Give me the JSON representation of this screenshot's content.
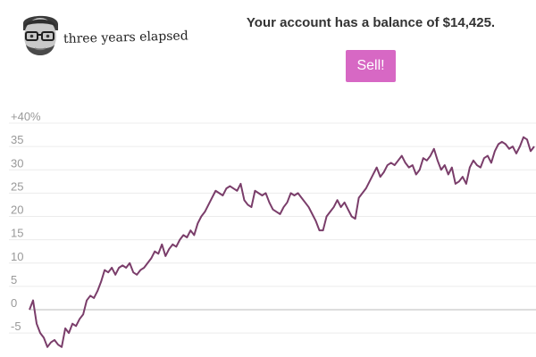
{
  "header": {
    "elapsed_text": "three years elapsed",
    "balance_text": "Your account has a balance of $14,425.",
    "sell_label": "Sell!"
  },
  "colors": {
    "accent": "#d768c4",
    "line": "#7a3d6a",
    "grid": "#ececec",
    "zero_line": "#bbbbbb",
    "tick_text": "#999999"
  },
  "chart_data": {
    "type": "line",
    "title": "",
    "xlabel": "",
    "ylabel": "",
    "ylim": [
      -8,
      40
    ],
    "y_ticks": [
      {
        "value": 40,
        "label": "+40%"
      },
      {
        "value": 35,
        "label": "35"
      },
      {
        "value": 30,
        "label": "30"
      },
      {
        "value": 25,
        "label": "25"
      },
      {
        "value": 20,
        "label": "20"
      },
      {
        "value": 15,
        "label": "15"
      },
      {
        "value": 10,
        "label": "10"
      },
      {
        "value": 5,
        "label": "5"
      },
      {
        "value": 0,
        "label": "0"
      },
      {
        "value": -5,
        "label": "-5"
      }
    ],
    "grid": true,
    "series": [
      {
        "values": [
          0,
          2,
          -3,
          -5,
          -6,
          -8,
          -7,
          -6.5,
          -7.5,
          -8,
          -4,
          -5,
          -3,
          -3.5,
          -2,
          -1,
          2,
          3,
          2.5,
          4,
          6,
          8.5,
          8,
          9,
          7.5,
          9,
          9.5,
          9,
          10,
          8,
          7.5,
          8.5,
          9,
          10,
          11,
          12.5,
          12,
          14,
          11.5,
          13,
          14,
          13.5,
          15,
          16,
          15.5,
          17,
          16,
          18.5,
          20,
          21,
          22.5,
          24,
          25.5,
          25,
          24.5,
          26,
          26.5,
          26,
          25.5,
          27,
          23.5,
          22.5,
          22,
          25.5,
          25,
          24.5,
          25,
          23,
          21.5,
          21,
          20.5,
          22,
          23,
          25,
          24.5,
          25,
          24,
          23,
          22,
          20.5,
          19,
          17,
          17,
          20,
          21,
          22,
          23.5,
          22,
          23,
          21.5,
          20,
          19.5,
          24,
          25,
          26,
          27.5,
          29,
          30.5,
          28.5,
          29.5,
          31,
          31.5,
          31,
          32,
          33,
          31.5,
          30.5,
          31,
          29,
          30,
          32.5,
          32,
          33,
          34.5,
          32,
          30,
          31,
          29,
          30.5,
          27,
          27.5,
          28.5,
          27,
          30.5,
          32,
          31,
          30.5,
          32.5,
          33,
          31.5,
          34,
          35.5,
          36,
          35.5,
          34.5,
          35,
          33.5,
          35,
          37,
          36.5,
          34,
          35
        ]
      }
    ]
  }
}
